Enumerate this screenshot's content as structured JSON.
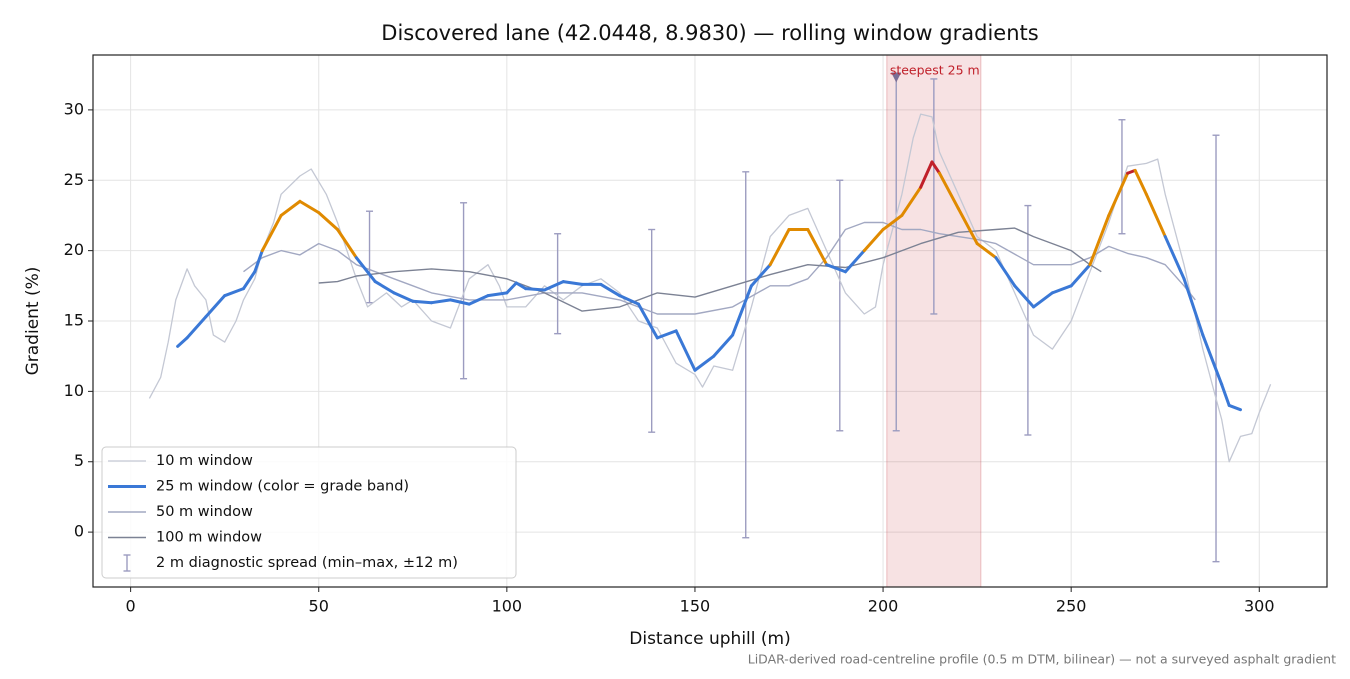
{
  "chart_data": {
    "type": "line",
    "title": "Discovered lane (42.0448, 8.9830) — rolling window gradients",
    "x_label": "Distance uphill (m)",
    "y_label": "Gradient (%)",
    "footnote": "LiDAR-derived road-centreline profile (0.5 m DTM, bilinear) — not a surveyed asphalt gradient",
    "xlim": [
      -10,
      318
    ],
    "ylim": [
      -3.9,
      33.9
    ],
    "xticks": [
      0,
      50,
      100,
      150,
      200,
      250,
      300
    ],
    "yticks": [
      0,
      5,
      10,
      15,
      20,
      25,
      30
    ],
    "grid": true,
    "legend": "lower left",
    "series": [
      {
        "name": "10 m window",
        "color": "#c4c8d4",
        "width": 1.3,
        "x": [
          5,
          8,
          10,
          12,
          15,
          17,
          20,
          22,
          25,
          28,
          30,
          33,
          35,
          38,
          40,
          45,
          48,
          52,
          55,
          60,
          63,
          68,
          72,
          75,
          80,
          85,
          90,
          95,
          98,
          100,
          105,
          110,
          115,
          120,
          125,
          130,
          135,
          140,
          145,
          150,
          152,
          155,
          160,
          165,
          170,
          175,
          180,
          185,
          190,
          195,
          198,
          200,
          205,
          208,
          210,
          213,
          215,
          220,
          225,
          230,
          235,
          240,
          245,
          250,
          255,
          260,
          265,
          270,
          273,
          275,
          280,
          285,
          288,
          290,
          292,
          295,
          298,
          300,
          303
        ],
        "values": [
          9.5,
          11,
          13.5,
          16.5,
          18.7,
          17.5,
          16.5,
          14,
          13.5,
          15,
          16.5,
          18,
          20,
          22,
          24,
          25.3,
          25.8,
          24,
          22,
          18,
          16,
          17,
          16,
          16.5,
          15,
          14.5,
          18,
          19,
          17.5,
          16,
          16,
          17.5,
          16.5,
          17.5,
          18,
          17,
          15,
          14.5,
          12,
          11.2,
          10.3,
          11.8,
          11.5,
          16,
          21,
          22.5,
          23,
          20,
          17,
          15.5,
          16,
          19,
          24,
          28,
          29.7,
          29.5,
          27,
          24,
          21,
          20,
          17,
          14,
          13,
          15,
          18.5,
          22,
          26,
          26.2,
          26.5,
          24,
          19,
          13,
          10,
          8,
          5,
          6.8,
          7,
          8.5,
          10.5
        ]
      },
      {
        "name": "25 m window (color = grade band)",
        "color": "#3a78d6",
        "width": 3,
        "bands": {
          "thresholds": [
            20,
            25
          ],
          "colors": [
            "#3a78d6",
            "#e08a00",
            "#c0202a"
          ]
        },
        "x": [
          12.5,
          15,
          20,
          25,
          30,
          33,
          35,
          40,
          45,
          50,
          55,
          60,
          65,
          70,
          75,
          80,
          85,
          90,
          95,
          100,
          102.5,
          105,
          110,
          115,
          120,
          125,
          130,
          135,
          140,
          145,
          150,
          155,
          160,
          165,
          170,
          175,
          180,
          185,
          190,
          195,
          200,
          205,
          210,
          213,
          215,
          220,
          225,
          230,
          235,
          240,
          245,
          250,
          255,
          260,
          265,
          267,
          270,
          275,
          280,
          285,
          290,
          292,
          295
        ],
        "values": [
          13.2,
          13.8,
          15.3,
          16.8,
          17.3,
          18.5,
          20,
          22.5,
          23.5,
          22.7,
          21.5,
          19.5,
          17.8,
          17,
          16.4,
          16.3,
          16.5,
          16.2,
          16.8,
          17,
          17.7,
          17.3,
          17.2,
          17.8,
          17.6,
          17.6,
          16.8,
          16.2,
          13.8,
          14.3,
          11.5,
          12.5,
          14,
          17.5,
          19,
          21.5,
          21.5,
          19,
          18.5,
          20,
          21.5,
          22.5,
          24.5,
          26.3,
          25.5,
          23,
          20.5,
          19.5,
          17.5,
          16,
          17,
          17.5,
          19,
          22.5,
          25.5,
          25.7,
          24,
          21,
          18,
          14,
          10.5,
          9,
          8.7
        ]
      },
      {
        "name": "50 m window",
        "color": "#a2a8c2",
        "width": 1.4,
        "x": [
          30,
          35,
          40,
          45,
          50,
          55,
          60,
          65,
          70,
          75,
          80,
          90,
          100,
          110,
          120,
          130,
          140,
          150,
          160,
          170,
          175,
          180,
          185,
          190,
          195,
          200,
          205,
          210,
          215,
          220,
          225,
          230,
          240,
          250,
          255,
          260,
          265,
          270,
          275,
          280,
          283
        ],
        "values": [
          18.5,
          19.5,
          20,
          19.7,
          20.5,
          20,
          19,
          18.5,
          18,
          17.5,
          17,
          16.5,
          16.5,
          17,
          17,
          16.5,
          15.5,
          15.5,
          16,
          17.5,
          17.5,
          18,
          19.5,
          21.5,
          22,
          22,
          21.5,
          21.5,
          21.2,
          21,
          20.8,
          20.5,
          19,
          19,
          19.5,
          20.3,
          19.8,
          19.5,
          19,
          17.5,
          16.5
        ]
      },
      {
        "name": "100 m window",
        "color": "#7c8294",
        "width": 1.4,
        "x": [
          50,
          55,
          60,
          70,
          80,
          90,
          100,
          110,
          120,
          130,
          140,
          150,
          160,
          170,
          180,
          190,
          200,
          210,
          220,
          230,
          235,
          240,
          245,
          250,
          255,
          258
        ],
        "values": [
          17.7,
          17.8,
          18.2,
          18.5,
          18.7,
          18.5,
          18,
          17,
          15.7,
          16,
          17,
          16.7,
          17.5,
          18.3,
          19,
          18.8,
          19.5,
          20.5,
          21.3,
          21.5,
          21.6,
          21,
          20.5,
          20,
          19,
          18.5
        ]
      }
    ],
    "errorbars": {
      "name": "2 m diagnostic spread (min–max, ±12 m)",
      "color": "#9c9cc0",
      "x": [
        63.5,
        88.5,
        113.5,
        138.5,
        163.5,
        188.5,
        203.5,
        213.5,
        238.5,
        263.5,
        288.5
      ],
      "low": [
        16.3,
        10.9,
        14.1,
        7.1,
        -0.4,
        7.2,
        7.2,
        15.5,
        6.9,
        21.2,
        -2.1
      ],
      "high": [
        22.8,
        23.4,
        21.2,
        21.5,
        25.6,
        25.0,
        32.5,
        32.2,
        23.2,
        29.3,
        28.2
      ]
    },
    "highlight": {
      "label": "steepest 25 m",
      "span": [
        201,
        226
      ],
      "marker_x": 203.5,
      "marker_y": 32.3,
      "color": "#c0202a"
    }
  }
}
